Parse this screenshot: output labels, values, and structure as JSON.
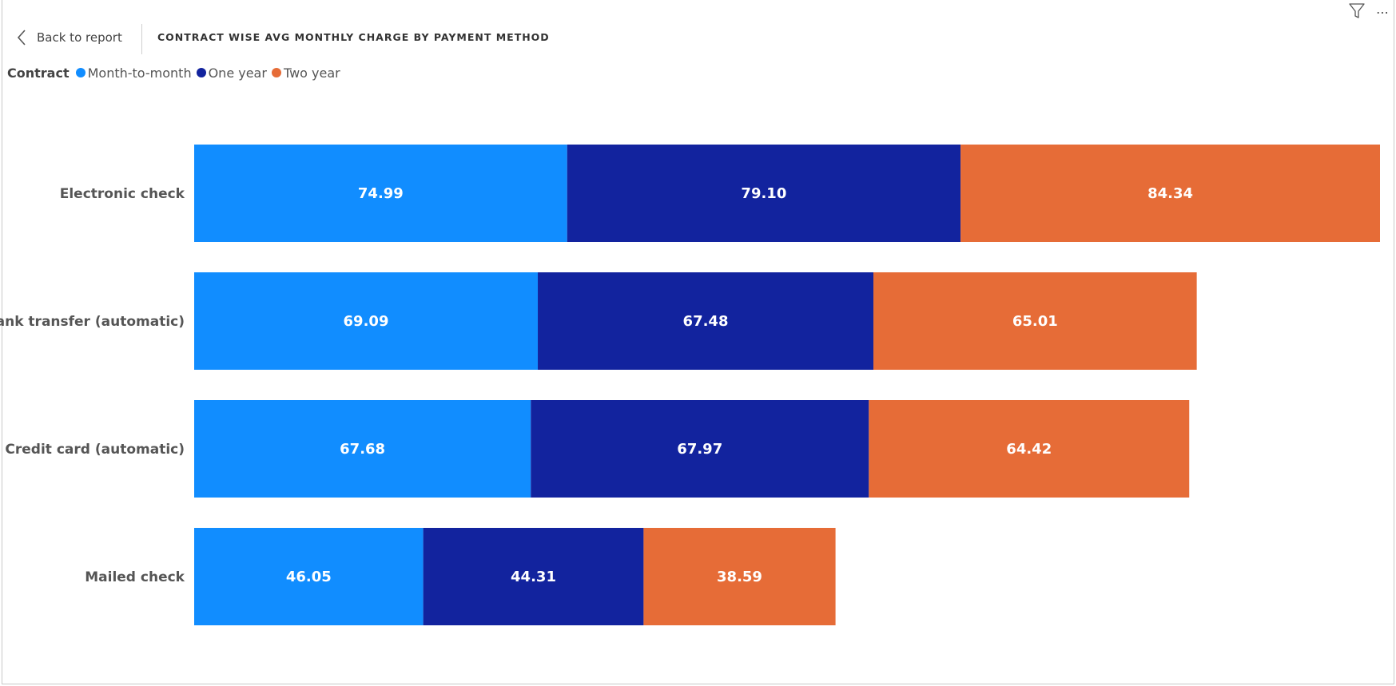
{
  "header": {
    "back_label": "Back to report",
    "title": "CONTRACT WISE AVG MONTHLY CHARGE BY PAYMENT METHOD"
  },
  "icons": {
    "back": "chevron-left-icon",
    "filter": "filter-icon",
    "more": "more-options-icon"
  },
  "colors": {
    "month_to_month": "#118DFF",
    "one_year": "#12239E",
    "two_year": "#E66C37"
  },
  "legend": {
    "title": "Contract",
    "items": [
      "Month-to-month",
      "One year",
      "Two year"
    ]
  },
  "chart_data": {
    "type": "bar",
    "orientation": "horizontal",
    "stacked": true,
    "categories": [
      "Electronic check",
      "Bank transfer (automatic)",
      "Credit card (automatic)",
      "Mailed check"
    ],
    "series": [
      {
        "name": "Month-to-month",
        "color": "#118DFF",
        "values": [
          74.99,
          69.09,
          67.68,
          46.05
        ]
      },
      {
        "name": "One year",
        "color": "#12239E",
        "values": [
          79.1,
          67.48,
          67.97,
          44.31
        ]
      },
      {
        "name": "Two year",
        "color": "#E66C37",
        "values": [
          84.34,
          65.01,
          64.42,
          38.59
        ]
      }
    ],
    "data_labels": [
      [
        "74.99",
        "79.10",
        "84.34"
      ],
      [
        "69.09",
        "67.48",
        "65.01"
      ],
      [
        "67.68",
        "67.97",
        "64.42"
      ],
      [
        "46.05",
        "44.31",
        "38.59"
      ]
    ],
    "legend_title": "Contract",
    "legend_position": "top-left",
    "grid": false,
    "xaxis_visible": false
  }
}
